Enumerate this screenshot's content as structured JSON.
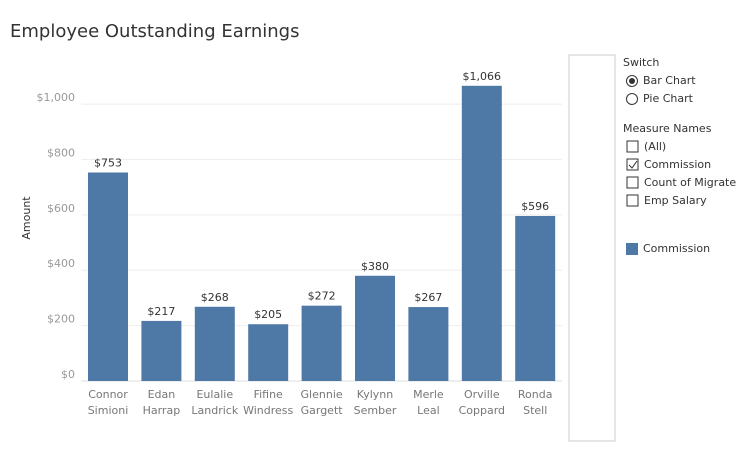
{
  "chart_data": {
    "type": "bar",
    "title": "Employee Outstanding Earnings",
    "y_label": "Amount",
    "categories": [
      "Connor Simioni",
      "Edan Harrap",
      "Eulalie Landrick",
      "Fifine Windress",
      "Glennie Gargett",
      "Kylynn Sember",
      "Merle Leal",
      "Orville Coppard",
      "Ronda Stell"
    ],
    "series": [
      {
        "name": "Commission",
        "color": "#4e79a7",
        "values": [
          753,
          217,
          268,
          205,
          272,
          380,
          267,
          1066,
          596
        ],
        "value_labels": [
          "$753",
          "$217",
          "$268",
          "$205",
          "$272",
          "$380",
          "$267",
          "$1,066",
          "$596"
        ]
      }
    ],
    "ylim": [
      0,
      1170
    ],
    "yticks": [
      {
        "value": 0,
        "label": "$0"
      },
      {
        "value": 200,
        "label": "$200"
      },
      {
        "value": 400,
        "label": "$400"
      },
      {
        "value": 600,
        "label": "$600"
      },
      {
        "value": 800,
        "label": "$800"
      },
      {
        "value": 1000,
        "label": "$1,000"
      }
    ],
    "grid": true
  },
  "controls": {
    "switch": {
      "title": "Switch",
      "options": [
        "Bar Chart",
        "Pie Chart"
      ],
      "selected": 0
    },
    "measure_names": {
      "title": "Measure Names",
      "options": [
        "(All)",
        "Commission",
        "Count of Migrated",
        "Emp Salary"
      ],
      "checked": [
        1
      ]
    }
  }
}
